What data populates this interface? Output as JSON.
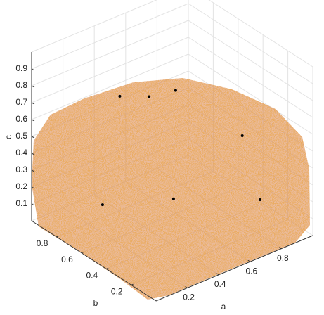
{
  "chart_data": {
    "type": "scatter3d",
    "xlabel": "a",
    "ylabel": "b",
    "zlabel": "c",
    "xlim": [
      0,
      1
    ],
    "ylim": [
      0,
      1
    ],
    "zlim": [
      0,
      1
    ],
    "xticks": [
      0.2,
      0.4,
      0.6,
      0.8
    ],
    "yticks": [
      0.2,
      0.4,
      0.6,
      0.8
    ],
    "zticks": [
      0.1,
      0.2,
      0.3,
      0.4,
      0.5,
      0.6,
      0.7,
      0.8,
      0.9
    ],
    "grid": true,
    "cloud_color": "#d2691e",
    "series": [
      {
        "color": "#000000",
        "x": [
          0.27,
          0.58,
          0.91,
          0.82,
          0.38,
          0.44,
          0.53
        ],
        "y": [
          0.77,
          0.59,
          0.31,
          0.34,
          0.77,
          0.61,
          0.51
        ],
        "z": [
          0.1,
          0.1,
          0.1,
          0.5,
          0.7,
          0.75,
          0.8
        ]
      }
    ]
  }
}
